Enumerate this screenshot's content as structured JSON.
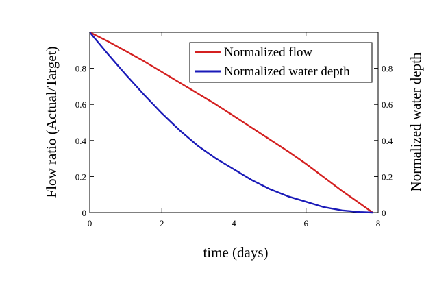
{
  "chart_data": {
    "type": "line",
    "title": "",
    "xlabel": "time (days)",
    "ylabel_left": "Flow ratio (Actual/Target)",
    "ylabel_right": "Normalized water depth",
    "xlim": [
      0,
      8
    ],
    "ylim_left": [
      0,
      1
    ],
    "ylim_right": [
      0,
      1
    ],
    "xticks": [
      "0",
      "2",
      "4",
      "6",
      "8"
    ],
    "yticks_left": [
      "0",
      "0.2",
      "0.4",
      "0.6",
      "0.8"
    ],
    "yticks_right": [
      "0",
      "0.2",
      "0.4",
      "0.6",
      "0.8"
    ],
    "xtick_values": [
      0,
      2,
      4,
      6,
      8
    ],
    "ytick_values": [
      0,
      0.2,
      0.4,
      0.6,
      0.8
    ],
    "grid": false,
    "legend_position": "top-right",
    "series": [
      {
        "name": "Normalized flow",
        "color": "#d42020",
        "x": [
          0,
          0.5,
          1,
          1.5,
          2,
          2.5,
          3,
          3.5,
          4,
          4.5,
          5,
          5.5,
          6,
          6.5,
          7,
          7.5,
          7.85
        ],
        "y": [
          1.0,
          0.95,
          0.895,
          0.84,
          0.78,
          0.72,
          0.66,
          0.6,
          0.535,
          0.47,
          0.405,
          0.34,
          0.27,
          0.195,
          0.12,
          0.05,
          0.0
        ]
      },
      {
        "name": "Normalized water depth",
        "color": "#1a1ab8",
        "x": [
          0,
          0.5,
          1,
          1.5,
          2,
          2.5,
          3,
          3.5,
          4,
          4.5,
          5,
          5.5,
          6,
          6.5,
          7,
          7.5,
          7.85
        ],
        "y": [
          1.0,
          0.88,
          0.765,
          0.655,
          0.55,
          0.455,
          0.37,
          0.3,
          0.24,
          0.18,
          0.13,
          0.09,
          0.06,
          0.03,
          0.012,
          0.003,
          0.0
        ]
      }
    ]
  }
}
